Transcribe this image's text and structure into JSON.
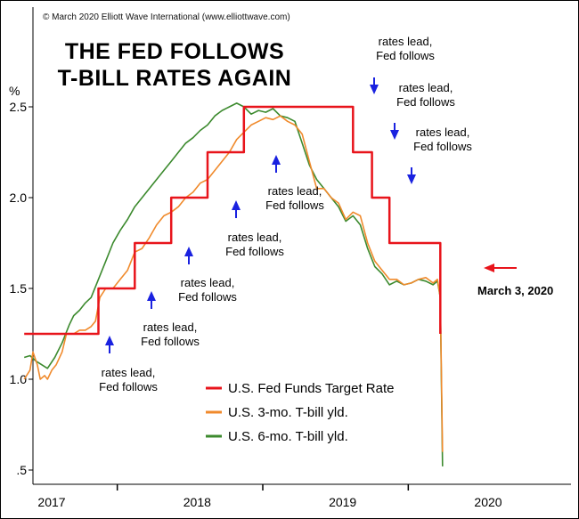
{
  "chart_data": {
    "type": "line",
    "copyright": "© March 2020 Elliott Wave International (www.elliottwave.com)",
    "title_lines": [
      "THE FED FOLLOWS",
      "T-BILL RATES AGAIN"
    ],
    "ylabel": "%",
    "ylim": [
      0.45,
      2.72
    ],
    "xlim": [
      2016.94,
      2020.68
    ],
    "y_ticks": [
      0.5,
      1.0,
      1.5,
      2.0,
      2.5
    ],
    "y_tick_labels": [
      ".5",
      "1.0",
      "1.5",
      "2.0",
      "2.5"
    ],
    "x_year_labels": [
      {
        "x": 2017.0,
        "label": "2017"
      },
      {
        "x": 2018.0,
        "label": "2018"
      },
      {
        "x": 2019.0,
        "label": "2019"
      },
      {
        "x": 2020.0,
        "label": "2020"
      }
    ],
    "x_divider_ticks": [
      2017.5,
      2018.5,
      2019.5
    ],
    "grid": false,
    "legend_position": "bottom-center",
    "series": [
      {
        "name": "U.S. Fed Funds Target Rate",
        "color": "#e8141b",
        "shape": "step",
        "points": [
          [
            2016.94,
            1.25
          ],
          [
            2017.45,
            1.25
          ],
          [
            2017.45,
            1.5
          ],
          [
            2017.7,
            1.5
          ],
          [
            2017.7,
            1.75
          ],
          [
            2017.95,
            1.75
          ],
          [
            2017.95,
            2.0
          ],
          [
            2018.2,
            2.0
          ],
          [
            2018.2,
            2.25
          ],
          [
            2018.45,
            2.25
          ],
          [
            2018.45,
            2.5
          ],
          [
            2019.2,
            2.5
          ],
          [
            2019.2,
            2.25
          ],
          [
            2019.33,
            2.25
          ],
          [
            2019.33,
            2.0
          ],
          [
            2019.45,
            2.0
          ],
          [
            2019.45,
            1.75
          ],
          [
            2019.8,
            1.75
          ],
          [
            2019.8,
            1.25
          ]
        ]
      },
      {
        "name": "U.S. 3-mo. T-bill yld.",
        "color": "#f08a2c",
        "shape": "line",
        "points": [
          [
            2016.94,
            1.0
          ],
          [
            2016.98,
            1.05
          ],
          [
            2017.0,
            1.15
          ],
          [
            2017.03,
            1.08
          ],
          [
            2017.05,
            1.0
          ],
          [
            2017.08,
            1.02
          ],
          [
            2017.1,
            1.0
          ],
          [
            2017.13,
            1.05
          ],
          [
            2017.16,
            1.08
          ],
          [
            2017.2,
            1.15
          ],
          [
            2017.23,
            1.25
          ],
          [
            2017.28,
            1.25
          ],
          [
            2017.32,
            1.27
          ],
          [
            2017.36,
            1.27
          ],
          [
            2017.4,
            1.29
          ],
          [
            2017.43,
            1.32
          ],
          [
            2017.46,
            1.45
          ],
          [
            2017.5,
            1.5
          ],
          [
            2017.55,
            1.5
          ],
          [
            2017.6,
            1.55
          ],
          [
            2017.65,
            1.6
          ],
          [
            2017.7,
            1.7
          ],
          [
            2017.75,
            1.72
          ],
          [
            2017.8,
            1.78
          ],
          [
            2017.85,
            1.85
          ],
          [
            2017.9,
            1.9
          ],
          [
            2017.95,
            1.92
          ],
          [
            2018.0,
            1.95
          ],
          [
            2018.05,
            2.0
          ],
          [
            2018.1,
            2.03
          ],
          [
            2018.15,
            2.08
          ],
          [
            2018.2,
            2.1
          ],
          [
            2018.25,
            2.15
          ],
          [
            2018.3,
            2.2
          ],
          [
            2018.35,
            2.25
          ],
          [
            2018.4,
            2.32
          ],
          [
            2018.45,
            2.36
          ],
          [
            2018.5,
            2.4
          ],
          [
            2018.55,
            2.42
          ],
          [
            2018.6,
            2.44
          ],
          [
            2018.65,
            2.43
          ],
          [
            2018.7,
            2.45
          ],
          [
            2018.75,
            2.42
          ],
          [
            2018.8,
            2.4
          ],
          [
            2018.85,
            2.35
          ],
          [
            2018.9,
            2.2
          ],
          [
            2018.95,
            2.05
          ],
          [
            2019.0,
            2.05
          ],
          [
            2019.05,
            2.0
          ],
          [
            2019.1,
            1.97
          ],
          [
            2019.15,
            1.88
          ],
          [
            2019.2,
            1.92
          ],
          [
            2019.25,
            1.9
          ],
          [
            2019.3,
            1.75
          ],
          [
            2019.35,
            1.65
          ],
          [
            2019.4,
            1.6
          ],
          [
            2019.45,
            1.55
          ],
          [
            2019.5,
            1.55
          ],
          [
            2019.55,
            1.52
          ],
          [
            2019.6,
            1.53
          ],
          [
            2019.65,
            1.55
          ],
          [
            2019.7,
            1.56
          ],
          [
            2019.75,
            1.53
          ],
          [
            2019.78,
            1.55
          ],
          [
            2019.8,
            1.45
          ],
          [
            2019.815,
            0.6
          ]
        ]
      },
      {
        "name": "U.S. 6-mo. T-bill yld.",
        "color": "#3c8a2e",
        "shape": "line",
        "points": [
          [
            2016.94,
            1.12
          ],
          [
            2016.98,
            1.13
          ],
          [
            2017.02,
            1.1
          ],
          [
            2017.06,
            1.08
          ],
          [
            2017.1,
            1.06
          ],
          [
            2017.15,
            1.12
          ],
          [
            2017.2,
            1.2
          ],
          [
            2017.25,
            1.3
          ],
          [
            2017.28,
            1.35
          ],
          [
            2017.32,
            1.38
          ],
          [
            2017.36,
            1.42
          ],
          [
            2017.4,
            1.45
          ],
          [
            2017.45,
            1.55
          ],
          [
            2017.5,
            1.65
          ],
          [
            2017.55,
            1.75
          ],
          [
            2017.6,
            1.82
          ],
          [
            2017.65,
            1.88
          ],
          [
            2017.7,
            1.95
          ],
          [
            2017.75,
            2.0
          ],
          [
            2017.8,
            2.05
          ],
          [
            2017.85,
            2.1
          ],
          [
            2017.9,
            2.15
          ],
          [
            2017.95,
            2.2
          ],
          [
            2018.0,
            2.25
          ],
          [
            2018.05,
            2.3
          ],
          [
            2018.1,
            2.33
          ],
          [
            2018.15,
            2.37
          ],
          [
            2018.2,
            2.4
          ],
          [
            2018.25,
            2.45
          ],
          [
            2018.3,
            2.48
          ],
          [
            2018.35,
            2.5
          ],
          [
            2018.4,
            2.52
          ],
          [
            2018.45,
            2.5
          ],
          [
            2018.5,
            2.46
          ],
          [
            2018.55,
            2.48
          ],
          [
            2018.6,
            2.47
          ],
          [
            2018.65,
            2.49
          ],
          [
            2018.7,
            2.45
          ],
          [
            2018.75,
            2.44
          ],
          [
            2018.8,
            2.42
          ],
          [
            2018.85,
            2.3
          ],
          [
            2018.9,
            2.18
          ],
          [
            2018.95,
            2.1
          ],
          [
            2019.0,
            2.05
          ],
          [
            2019.05,
            2.0
          ],
          [
            2019.1,
            1.95
          ],
          [
            2019.15,
            1.87
          ],
          [
            2019.2,
            1.9
          ],
          [
            2019.25,
            1.85
          ],
          [
            2019.3,
            1.72
          ],
          [
            2019.35,
            1.62
          ],
          [
            2019.4,
            1.58
          ],
          [
            2019.45,
            1.52
          ],
          [
            2019.5,
            1.54
          ],
          [
            2019.55,
            1.52
          ],
          [
            2019.6,
            1.53
          ],
          [
            2019.65,
            1.55
          ],
          [
            2019.7,
            1.54
          ],
          [
            2019.75,
            1.52
          ],
          [
            2019.78,
            1.54
          ],
          [
            2019.8,
            1.45
          ],
          [
            2019.815,
            0.52
          ]
        ]
      }
    ],
    "annotations": [
      {
        "lines": [
          "rates lead,",
          "Fed follows"
        ],
        "arrow": "up",
        "x": 2017.45
      },
      {
        "lines": [
          "rates lead,",
          "Fed follows"
        ],
        "arrow": "up",
        "x": 2017.7
      },
      {
        "lines": [
          "rates lead,",
          "Fed follows"
        ],
        "arrow": "up",
        "x": 2017.95
      },
      {
        "lines": [
          "rates lead,",
          "Fed follows"
        ],
        "arrow": "up",
        "x": 2018.2
      },
      {
        "lines": [
          "rates lead,",
          "Fed follows"
        ],
        "arrow": "up",
        "x": 2018.45
      },
      {
        "lines": [
          "rates lead,",
          "Fed follows"
        ],
        "arrow": "down",
        "x": 2019.2
      },
      {
        "lines": [
          "rates lead,",
          "Fed follows"
        ],
        "arrow": "down",
        "x": 2019.33
      },
      {
        "lines": [
          "rates lead,",
          "Fed follows"
        ],
        "arrow": "down",
        "x": 2019.45
      }
    ],
    "march_label": "March 3, 2020",
    "march_arrow_color": "#e8141b",
    "annotation_arrow_color": "#1a22e0"
  }
}
